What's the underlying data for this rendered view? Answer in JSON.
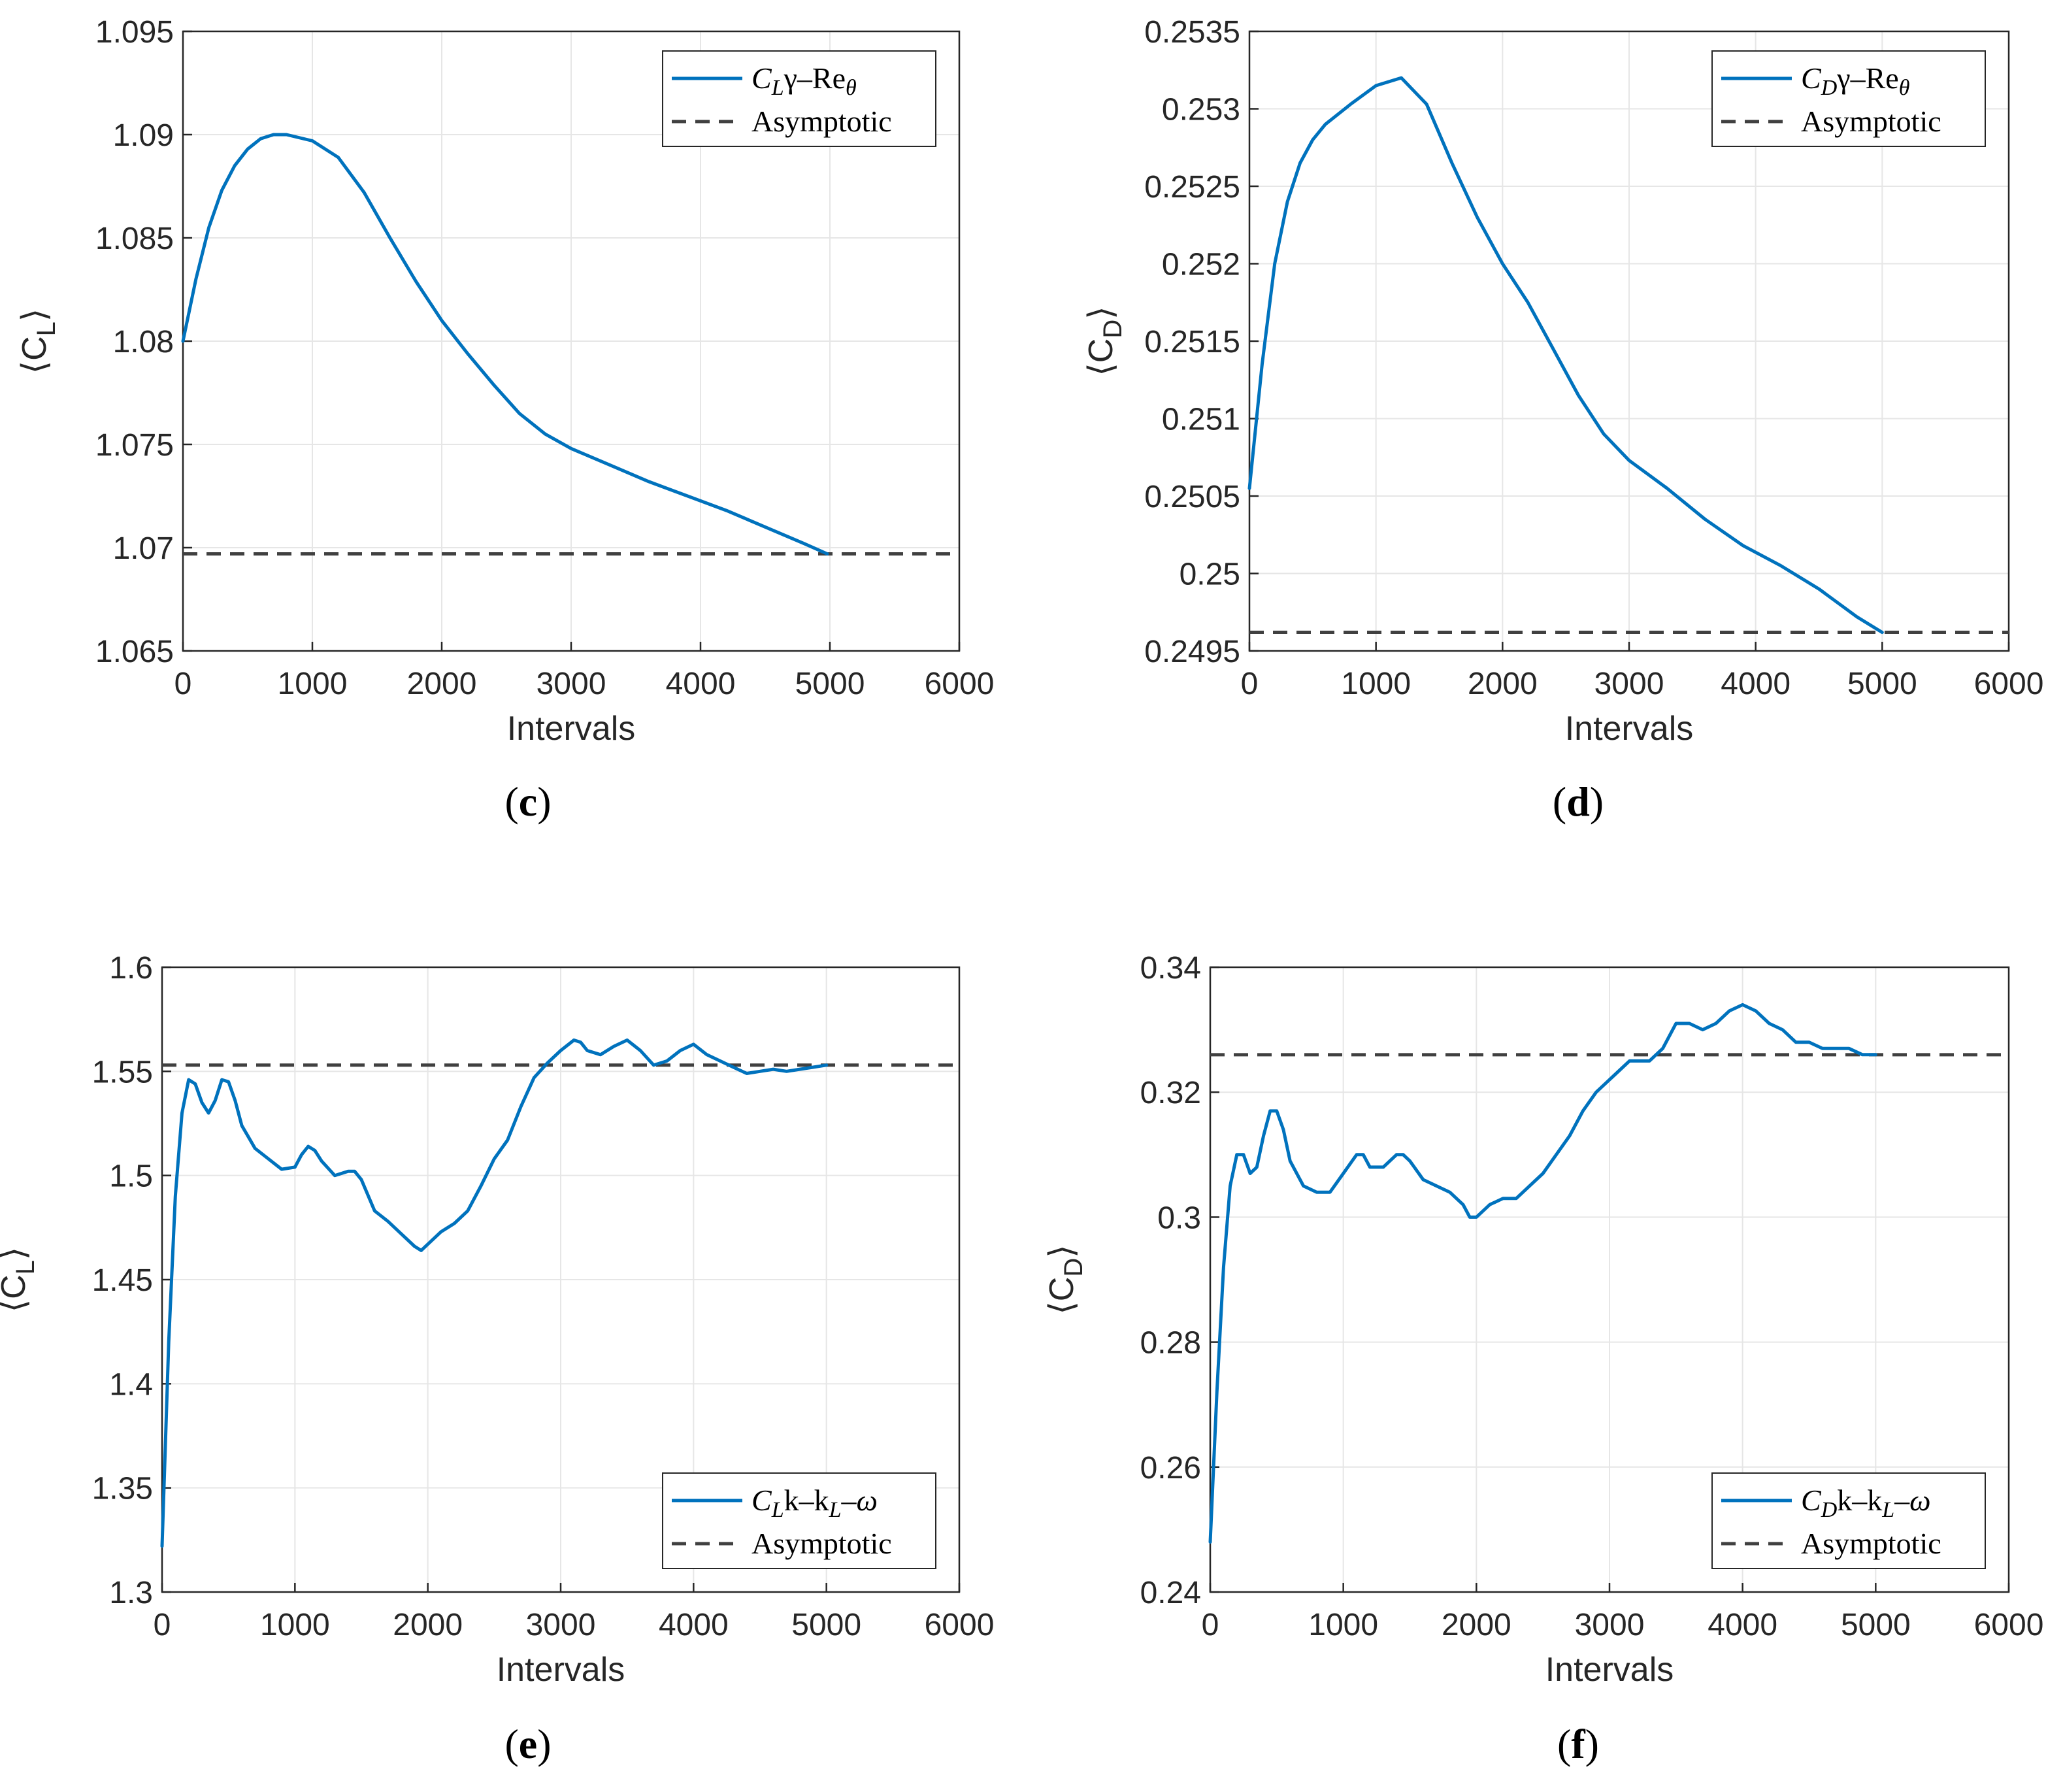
{
  "colors": {
    "series": "#0072BD",
    "asymptotic": "#404040",
    "axis": "#262626",
    "grid": "#e6e6e6"
  },
  "chart_data": [
    {
      "panel": "c",
      "type": "line",
      "xlabel": "Intervals",
      "ylabel": "⟨C",
      "ylabel_sub": "L",
      "ylabel_close": "⟩",
      "xlim": [
        0,
        6000
      ],
      "ylim": [
        1.065,
        1.095
      ],
      "xticks": [
        0,
        1000,
        2000,
        3000,
        4000,
        5000,
        6000
      ],
      "yticks": [
        1.065,
        1.07,
        1.075,
        1.08,
        1.085,
        1.09,
        1.095
      ],
      "ytick_labels": [
        "1.065",
        "1.07",
        "1.075",
        "1.08",
        "1.085",
        "1.09",
        "1.095"
      ],
      "legend_position": "top-right",
      "legend": {
        "coef": "C",
        "coef_sub": "L",
        "model": "γ–Re",
        "model_sub": "θ",
        "asym": "Asymptotic"
      },
      "asymptote": 1.0697,
      "x": [
        0,
        100,
        200,
        300,
        400,
        500,
        600,
        700,
        800,
        1000,
        1200,
        1400,
        1600,
        1800,
        2000,
        2200,
        2400,
        2600,
        2800,
        3000,
        3300,
        3600,
        3900,
        4200,
        4500,
        4800,
        4980
      ],
      "y": [
        1.08,
        1.083,
        1.0855,
        1.0873,
        1.0885,
        1.0893,
        1.0898,
        1.09,
        1.09,
        1.0897,
        1.0889,
        1.0872,
        1.085,
        1.0829,
        1.081,
        1.0794,
        1.0779,
        1.0765,
        1.0755,
        1.0748,
        1.074,
        1.0732,
        1.0725,
        1.0718,
        1.071,
        1.0702,
        1.0697
      ]
    },
    {
      "panel": "d",
      "type": "line",
      "xlabel": "Intervals",
      "ylabel": "⟨C",
      "ylabel_sub": "D",
      "ylabel_close": "⟩",
      "xlim": [
        0,
        6000
      ],
      "ylim": [
        0.2495,
        0.2535
      ],
      "xticks": [
        0,
        1000,
        2000,
        3000,
        4000,
        5000,
        6000
      ],
      "yticks": [
        0.2495,
        0.25,
        0.2505,
        0.251,
        0.2515,
        0.252,
        0.2525,
        0.253,
        0.2535
      ],
      "ytick_labels": [
        "0.2495",
        "0.25",
        "0.2505",
        "0.251",
        "0.2515",
        "0.252",
        "0.2525",
        "0.253",
        "0.2535"
      ],
      "legend_position": "top-right",
      "legend": {
        "coef": "C",
        "coef_sub": "D",
        "model": "γ–Re",
        "model_sub": "θ",
        "asym": "Asymptotic"
      },
      "asymptote": 0.24962,
      "x": [
        0,
        100,
        200,
        300,
        400,
        500,
        600,
        800,
        1000,
        1200,
        1400,
        1600,
        1800,
        2000,
        2200,
        2400,
        2600,
        2800,
        3000,
        3300,
        3600,
        3900,
        4200,
        4500,
        4800,
        5000
      ],
      "y": [
        0.25055,
        0.25135,
        0.252,
        0.2524,
        0.25265,
        0.2528,
        0.2529,
        0.25303,
        0.25315,
        0.2532,
        0.25303,
        0.25265,
        0.2523,
        0.252,
        0.25175,
        0.25145,
        0.25115,
        0.2509,
        0.25073,
        0.25055,
        0.25035,
        0.25018,
        0.25005,
        0.2499,
        0.24972,
        0.24962
      ]
    },
    {
      "panel": "e",
      "type": "line",
      "xlabel": "Intervals",
      "ylabel": "⟨C",
      "ylabel_sub": "L",
      "ylabel_close": "⟩",
      "xlim": [
        0,
        6000
      ],
      "ylim": [
        1.3,
        1.6
      ],
      "xticks": [
        0,
        1000,
        2000,
        3000,
        4000,
        5000,
        6000
      ],
      "yticks": [
        1.3,
        1.35,
        1.4,
        1.45,
        1.5,
        1.55,
        1.6
      ],
      "ytick_labels": [
        "1.3",
        "1.35",
        "1.4",
        "1.45",
        "1.5",
        "1.55",
        "1.6"
      ],
      "legend_position": "bottom-right",
      "legend": {
        "coef": "C",
        "coef_sub": "L",
        "model": "k–k",
        "model_sub": "L",
        "model_tail": "–ω",
        "asym": "Asymptotic"
      },
      "asymptote": 1.553,
      "x": [
        0,
        50,
        100,
        150,
        200,
        250,
        300,
        350,
        400,
        450,
        500,
        550,
        600,
        700,
        800,
        900,
        1000,
        1050,
        1100,
        1150,
        1200,
        1300,
        1400,
        1450,
        1500,
        1600,
        1700,
        1800,
        1900,
        1950,
        2000,
        2100,
        2200,
        2300,
        2400,
        2500,
        2600,
        2700,
        2800,
        2900,
        3000,
        3100,
        3150,
        3200,
        3300,
        3400,
        3500,
        3600,
        3700,
        3800,
        3900,
        4000,
        4100,
        4200,
        4300,
        4400,
        4500,
        4600,
        4700,
        4800,
        4900,
        5000
      ],
      "y": [
        1.322,
        1.42,
        1.49,
        1.53,
        1.546,
        1.544,
        1.535,
        1.53,
        1.536,
        1.546,
        1.545,
        1.536,
        1.524,
        1.513,
        1.508,
        1.503,
        1.504,
        1.51,
        1.514,
        1.512,
        1.507,
        1.5,
        1.502,
        1.502,
        1.498,
        1.483,
        1.478,
        1.472,
        1.466,
        1.464,
        1.467,
        1.473,
        1.477,
        1.483,
        1.495,
        1.508,
        1.517,
        1.533,
        1.547,
        1.554,
        1.56,
        1.565,
        1.564,
        1.56,
        1.558,
        1.562,
        1.565,
        1.56,
        1.553,
        1.555,
        1.56,
        1.563,
        1.558,
        1.555,
        1.552,
        1.549,
        1.55,
        1.551,
        1.55,
        1.551,
        1.552,
        1.553
      ]
    },
    {
      "panel": "f",
      "type": "line",
      "xlabel": "Intervals",
      "ylabel": "⟨C",
      "ylabel_sub": "D",
      "ylabel_close": "⟩",
      "xlim": [
        0,
        6000
      ],
      "ylim": [
        0.24,
        0.34
      ],
      "xticks": [
        0,
        1000,
        2000,
        3000,
        4000,
        5000,
        6000
      ],
      "yticks": [
        0.24,
        0.26,
        0.28,
        0.3,
        0.32,
        0.34
      ],
      "ytick_labels": [
        "0.24",
        "0.26",
        "0.28",
        "0.3",
        "0.32",
        "0.34"
      ],
      "legend_position": "bottom-right",
      "legend": {
        "coef": "C",
        "coef_sub": "D",
        "model": "k–k",
        "model_sub": "L",
        "model_tail": "–ω",
        "asym": "Asymptotic"
      },
      "asymptote": 0.326,
      "x": [
        0,
        50,
        100,
        150,
        200,
        250,
        300,
        350,
        400,
        450,
        500,
        550,
        600,
        700,
        800,
        900,
        1000,
        1100,
        1150,
        1200,
        1300,
        1400,
        1450,
        1500,
        1600,
        1700,
        1800,
        1900,
        1950,
        2000,
        2100,
        2200,
        2300,
        2400,
        2500,
        2600,
        2700,
        2800,
        2900,
        3000,
        3100,
        3150,
        3200,
        3300,
        3400,
        3500,
        3600,
        3700,
        3800,
        3900,
        4000,
        4100,
        4200,
        4300,
        4400,
        4500,
        4600,
        4700,
        4800,
        4900,
        5000
      ],
      "y": [
        0.248,
        0.272,
        0.292,
        0.305,
        0.31,
        0.31,
        0.307,
        0.308,
        0.313,
        0.317,
        0.317,
        0.314,
        0.309,
        0.305,
        0.304,
        0.304,
        0.307,
        0.31,
        0.31,
        0.308,
        0.308,
        0.31,
        0.31,
        0.309,
        0.306,
        0.305,
        0.304,
        0.302,
        0.3,
        0.3,
        0.302,
        0.303,
        0.303,
        0.305,
        0.307,
        0.31,
        0.313,
        0.317,
        0.32,
        0.322,
        0.324,
        0.325,
        0.325,
        0.325,
        0.327,
        0.331,
        0.331,
        0.33,
        0.331,
        0.333,
        0.334,
        0.333,
        0.331,
        0.33,
        0.328,
        0.328,
        0.327,
        0.327,
        0.327,
        0.326,
        0.326
      ]
    }
  ]
}
